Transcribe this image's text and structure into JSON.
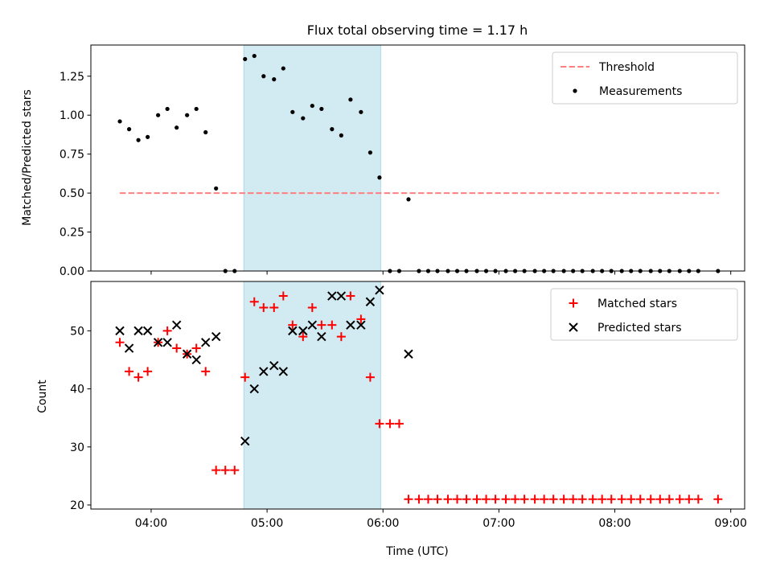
{
  "chart_data": {
    "type": "scatter",
    "title": "Flux total observing time = 1.17 h",
    "xlabel": "Time (UTC)",
    "x_unit": "hours UTC",
    "xlim": [
      3.48,
      9.12
    ],
    "xticks": [
      4,
      5,
      6,
      7,
      8,
      9
    ],
    "xtick_labels": [
      "04:00",
      "05:00",
      "06:00",
      "07:00",
      "08:00",
      "09:00"
    ],
    "shaded_span": {
      "x": [
        4.8,
        5.98
      ],
      "color": "#add8e6"
    },
    "panels": [
      {
        "ylabel": "Matched/Predicted stars",
        "ylim": [
          0,
          1.45
        ],
        "yticks": [
          0,
          0.25,
          0.5,
          0.75,
          1.0,
          1.25
        ],
        "ytick_labels": [
          "0.00",
          "0.25",
          "0.50",
          "0.75",
          "1.00",
          "1.25"
        ],
        "legend": "top-right",
        "series": [
          {
            "name": "Threshold",
            "kind": "dashed-line",
            "color": "#ff7f7f",
            "x": [
              3.73,
              8.9
            ],
            "y": [
              0.5,
              0.5
            ]
          },
          {
            "name": "Measurements",
            "kind": "dot",
            "color": "#000000",
            "x": [
              3.73,
              3.81,
              3.89,
              3.97,
              4.06,
              4.14,
              4.22,
              4.31,
              4.39,
              4.47,
              4.56,
              4.64,
              4.72,
              4.81,
              4.89,
              4.97,
              5.06,
              5.14,
              5.22,
              5.31,
              5.39,
              5.47,
              5.56,
              5.64,
              5.72,
              5.81,
              5.89,
              5.97,
              6.06,
              6.14,
              6.22,
              6.31,
              6.39,
              6.47,
              6.56,
              6.64,
              6.72,
              6.81,
              6.89,
              6.97,
              7.06,
              7.14,
              7.22,
              7.31,
              7.39,
              7.47,
              7.56,
              7.64,
              7.72,
              7.81,
              7.89,
              7.97,
              8.06,
              8.14,
              8.22,
              8.31,
              8.39,
              8.47,
              8.56,
              8.64,
              8.72,
              8.89
            ],
            "y": [
              0.96,
              0.91,
              0.84,
              0.86,
              1.0,
              1.04,
              0.92,
              1.0,
              1.04,
              0.89,
              0.53,
              0.0,
              0.0,
              1.36,
              1.38,
              1.25,
              1.23,
              1.3,
              1.02,
              0.98,
              1.06,
              1.04,
              0.91,
              0.87,
              1.1,
              1.02,
              0.76,
              0.6,
              0.0,
              0.0,
              0.46,
              0.0,
              0.0,
              0.0,
              0.0,
              0.0,
              0.0,
              0.0,
              0.0,
              0.0,
              0.0,
              0.0,
              0.0,
              0.0,
              0.0,
              0.0,
              0.0,
              0.0,
              0.0,
              0.0,
              0.0,
              0.0,
              0.0,
              0.0,
              0.0,
              0.0,
              0.0,
              0.0,
              0.0,
              0.0,
              0.0,
              0.0
            ]
          }
        ]
      },
      {
        "ylabel": "Count",
        "ylim": [
          19.3,
          58.5
        ],
        "yticks": [
          20,
          30,
          40,
          50
        ],
        "ytick_labels": [
          "20",
          "30",
          "40",
          "50"
        ],
        "legend": "top-right",
        "series": [
          {
            "name": "Matched stars",
            "kind": "plus",
            "color": "#ff0000",
            "x": [
              3.73,
              3.81,
              3.89,
              3.97,
              4.06,
              4.14,
              4.22,
              4.31,
              4.39,
              4.47,
              4.56,
              4.64,
              4.72,
              4.81,
              4.89,
              4.97,
              5.06,
              5.14,
              5.22,
              5.31,
              5.39,
              5.47,
              5.56,
              5.64,
              5.72,
              5.81,
              5.89,
              5.97,
              6.06,
              6.14,
              6.22,
              6.31,
              6.39,
              6.47,
              6.56,
              6.64,
              6.72,
              6.81,
              6.89,
              6.97,
              7.06,
              7.14,
              7.22,
              7.31,
              7.39,
              7.47,
              7.56,
              7.64,
              7.72,
              7.81,
              7.89,
              7.97,
              8.06,
              8.14,
              8.22,
              8.31,
              8.39,
              8.47,
              8.56,
              8.64,
              8.72,
              8.89
            ],
            "y": [
              48,
              43,
              42,
              43,
              48,
              50,
              47,
              46,
              47,
              43,
              26,
              26,
              26,
              42,
              55,
              54,
              54,
              56,
              51,
              49,
              54,
              51,
              51,
              49,
              56,
              52,
              42,
              34,
              34,
              34,
              21,
              21,
              21,
              21,
              21,
              21,
              21,
              21,
              21,
              21,
              21,
              21,
              21,
              21,
              21,
              21,
              21,
              21,
              21,
              21,
              21,
              21,
              21,
              21,
              21,
              21,
              21,
              21,
              21,
              21,
              21,
              21
            ]
          },
          {
            "name": "Predicted stars",
            "kind": "cross",
            "color": "#000000",
            "x": [
              3.73,
              3.81,
              3.89,
              3.97,
              4.06,
              4.14,
              4.22,
              4.31,
              4.39,
              4.47,
              4.56,
              4.81,
              4.89,
              4.97,
              5.06,
              5.14,
              5.22,
              5.31,
              5.39,
              5.47,
              5.56,
              5.64,
              5.72,
              5.81,
              5.89,
              5.97,
              6.22
            ],
            "y": [
              50,
              47,
              50,
              50,
              48,
              48,
              51,
              46,
              45,
              48,
              49,
              31,
              40,
              43,
              44,
              43,
              50,
              50,
              51,
              49,
              56,
              56,
              51,
              51,
              55,
              57,
              46
            ]
          }
        ]
      }
    ]
  }
}
